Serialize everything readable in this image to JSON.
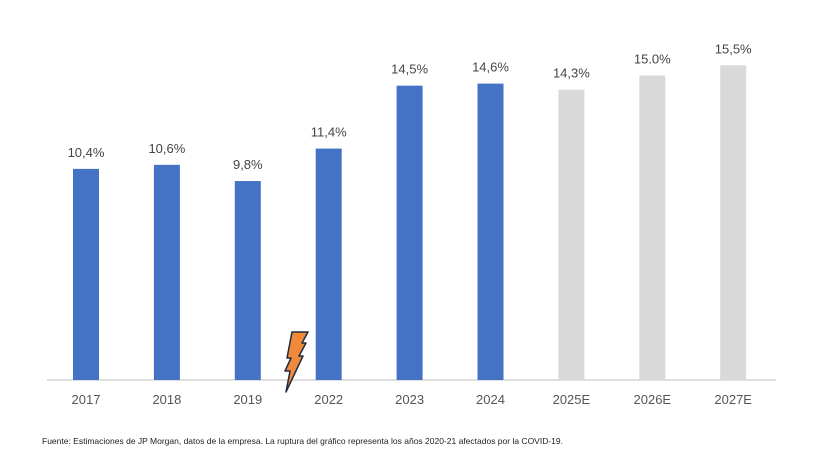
{
  "chart_data": {
    "type": "bar",
    "categories": [
      "2017",
      "2018",
      "2019",
      "2022",
      "2023",
      "2024",
      "2025E",
      "2026E",
      "2027E"
    ],
    "values": [
      10.4,
      10.6,
      9.8,
      11.4,
      14.5,
      14.6,
      14.3,
      15.0,
      15.5
    ],
    "data_labels": [
      "10,4%",
      "10,6%",
      "9,8%",
      "11,4%",
      "14,5%",
      "14,6%",
      "14,3%",
      "15.0%",
      "15,5%"
    ],
    "estimate": [
      false,
      false,
      false,
      false,
      false,
      false,
      true,
      true,
      true
    ],
    "colors": {
      "actual": "#4472C4",
      "estimate": "#D9D9D9",
      "axis": "#BFBFBF",
      "break_icon": "#F08A3A"
    },
    "axis_break_between": [
      "2019",
      "2022"
    ],
    "break_icon": "lightning-bolt-icon",
    "title": "",
    "xlabel": "",
    "ylabel": "",
    "ylim": [
      0,
      15.5
    ],
    "grid": false,
    "legend": "none"
  },
  "source_note": "Fuente: Estimaciones de JP Morgan, datos de la empresa. La ruptura del gráfico representa los años 2020-21 afectados por la COVID-19."
}
